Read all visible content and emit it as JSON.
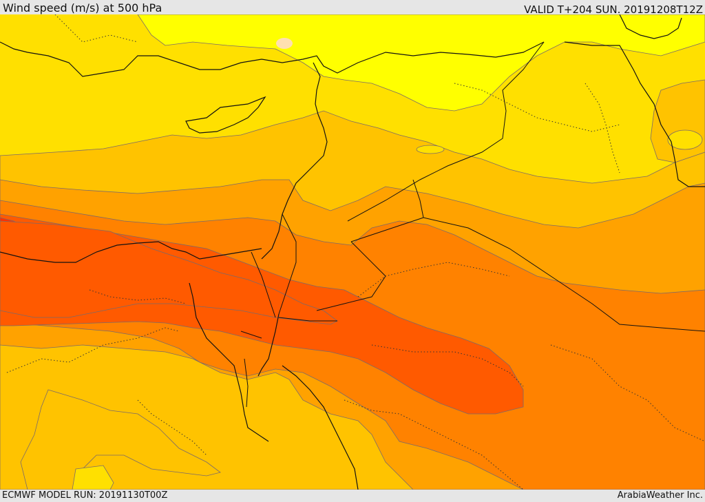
{
  "header": {
    "title": "Wind speed (m/s) at 500 hPa",
    "valid": "VALID T+204 SUN. 20191208T12Z"
  },
  "footer": {
    "model_run": "ECMWF MODEL RUN: 20191130T00Z",
    "credit": "ArabiaWeather Inc."
  },
  "colors": {
    "level_1": "#ffff00",
    "level_2": "#ffe000",
    "level_3": "#ffc300",
    "level_4": "#ffa200",
    "level_5": "#ff8200",
    "level_6": "#ff5a00",
    "level_7": "#ff3000",
    "small_spot": "#ffe0b0"
  }
}
